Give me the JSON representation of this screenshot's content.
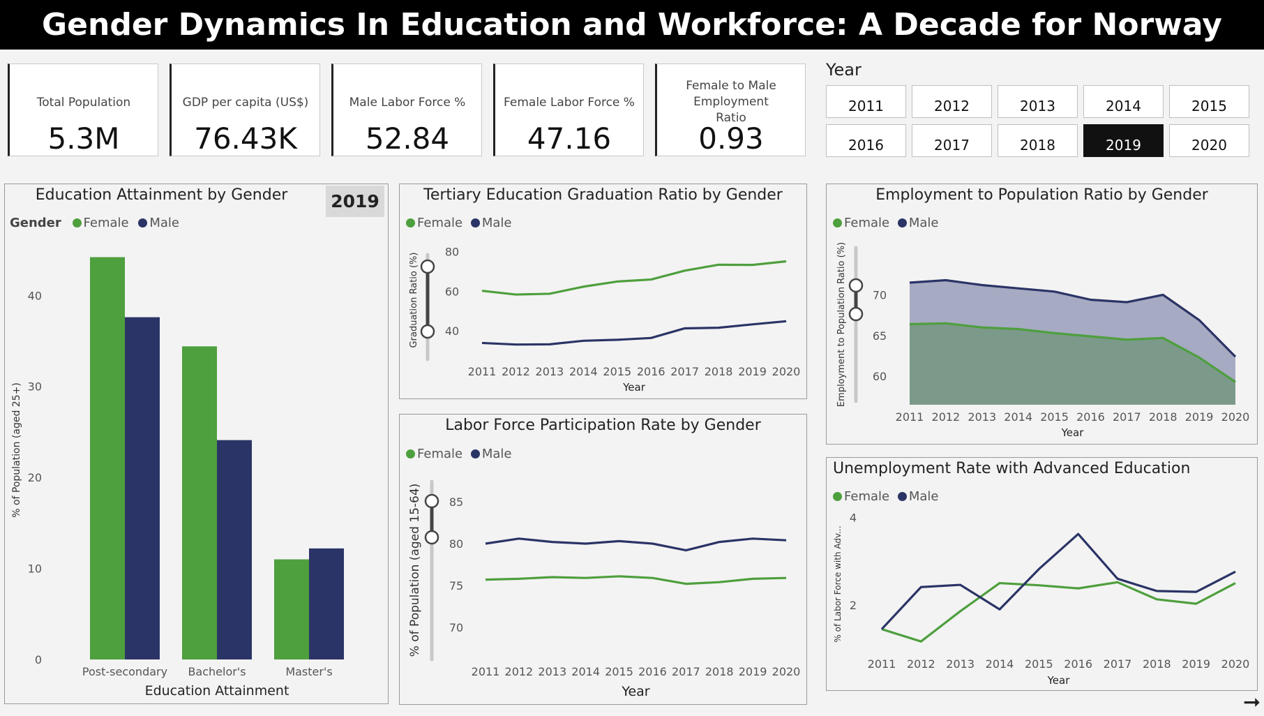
{
  "header": {
    "title": "Gender Dynamics In Education and Workforce: A Decade for Norway"
  },
  "kpis": [
    {
      "label": "Total Population",
      "value": "5.3M"
    },
    {
      "label": "GDP per capita (US$)",
      "value": "76.43K"
    },
    {
      "label": "Male Labor Force %",
      "value": "52.84"
    },
    {
      "label": "Female Labor Force %",
      "value": "47.16"
    },
    {
      "label": "Female to Male Employment Ratio",
      "value": "0.93"
    }
  ],
  "year_slicer": {
    "label": "Year",
    "years": [
      "2011",
      "2012",
      "2013",
      "2014",
      "2015",
      "2016",
      "2017",
      "2018",
      "2019",
      "2020"
    ],
    "selected": "2019"
  },
  "legend": {
    "gender_label": "Gender",
    "female": "Female",
    "male": "Male"
  },
  "colors": {
    "female": "#4e9f3d",
    "male": "#2b3466",
    "male_area": "#a6aac2",
    "female_area": "#7b9a8a"
  },
  "nav": {
    "next_icon": "arrow-right-icon"
  },
  "chart_data": [
    {
      "id": "education",
      "type": "bar",
      "title": "Education Attainment by Gender",
      "year_badge": "2019",
      "categories": [
        "Post-secondary",
        "Bachelor's",
        "Master's"
      ],
      "series": [
        {
          "name": "Female",
          "values": [
            44.2,
            34.4,
            11.0
          ]
        },
        {
          "name": "Male",
          "values": [
            37.6,
            24.1,
            12.2
          ]
        }
      ],
      "xlabel": "Education Attainment",
      "ylabel": "% of Population (aged 25+)",
      "ylim": [
        0,
        46
      ],
      "yticks": [
        0,
        10,
        20,
        30,
        40
      ],
      "legend_position": "top-left",
      "grid": false
    },
    {
      "id": "tertiary",
      "type": "line",
      "title": "Tertiary Education Graduation Ratio by Gender",
      "x": [
        "2011",
        "2012",
        "2013",
        "2014",
        "2015",
        "2016",
        "2017",
        "2018",
        "2019",
        "2020"
      ],
      "series": [
        {
          "name": "Female",
          "values": [
            60.2,
            58.3,
            58.7,
            62.3,
            64.9,
            65.9,
            70.4,
            73.4,
            73.3,
            75.1
          ]
        },
        {
          "name": "Male",
          "values": [
            33.8,
            33.0,
            33.1,
            34.9,
            35.4,
            36.3,
            41.2,
            41.5,
            43.2,
            44.8
          ]
        }
      ],
      "xlabel": "Year",
      "ylabel": "Graduation Ratio (%)",
      "ylim": [
        29,
        82
      ],
      "yticks": [
        40,
        60,
        80
      ],
      "legend_position": "top-left",
      "grid": false
    },
    {
      "id": "labor",
      "type": "line",
      "title": "Labor Force Participation Rate by Gender",
      "x": [
        "2011",
        "2012",
        "2013",
        "2014",
        "2015",
        "2016",
        "2017",
        "2018",
        "2019",
        "2020"
      ],
      "series": [
        {
          "name": "Female",
          "values": [
            75.7,
            75.8,
            76.0,
            75.9,
            76.1,
            75.9,
            75.2,
            75.4,
            75.8,
            75.9
          ]
        },
        {
          "name": "Male",
          "values": [
            80.0,
            80.6,
            80.2,
            80.0,
            80.3,
            80.0,
            79.2,
            80.2,
            80.6,
            80.4
          ]
        }
      ],
      "xlabel": "Year",
      "ylabel": "% of Population (aged 15-64)",
      "ylim": [
        67,
        87
      ],
      "yticks": [
        70,
        75,
        80,
        85
      ],
      "legend_position": "top-left",
      "grid": false
    },
    {
      "id": "employment",
      "type": "area",
      "title": "Employment to Population Ratio by Gender",
      "x": [
        "2011",
        "2012",
        "2013",
        "2014",
        "2015",
        "2016",
        "2017",
        "2018",
        "2019",
        "2020"
      ],
      "series": [
        {
          "name": "Female",
          "values": [
            66.4,
            66.5,
            66.0,
            65.8,
            65.3,
            64.9,
            64.5,
            64.7,
            62.3,
            59.3
          ]
        },
        {
          "name": "Male",
          "values": [
            71.5,
            71.8,
            71.2,
            70.8,
            70.4,
            69.4,
            69.1,
            70.0,
            66.9,
            62.4
          ]
        }
      ],
      "xlabel": "Year",
      "ylabel": "Employment to Population Ratio (%)",
      "ylim": [
        56.5,
        74.5
      ],
      "yticks": [
        60,
        65,
        70
      ],
      "legend_position": "top-left",
      "grid": false
    },
    {
      "id": "unemployment",
      "type": "line",
      "title": "Unemployment Rate with Advanced Education",
      "x": [
        "2011",
        "2012",
        "2013",
        "2014",
        "2015",
        "2016",
        "2017",
        "2018",
        "2019",
        "2020"
      ],
      "series": [
        {
          "name": "Female",
          "values": [
            1.45,
            1.17,
            1.86,
            2.5,
            2.45,
            2.38,
            2.52,
            2.13,
            2.03,
            2.5
          ]
        },
        {
          "name": "Male",
          "values": [
            1.45,
            2.41,
            2.46,
            1.9,
            2.82,
            3.62,
            2.6,
            2.32,
            2.3,
            2.76
          ]
        }
      ],
      "xlabel": "Year",
      "ylabel": "% of Labor Force with Adv...",
      "ylim": [
        0.6,
        4.1
      ],
      "yticks": [
        2,
        4
      ],
      "legend_position": "top-left",
      "grid": false
    }
  ]
}
